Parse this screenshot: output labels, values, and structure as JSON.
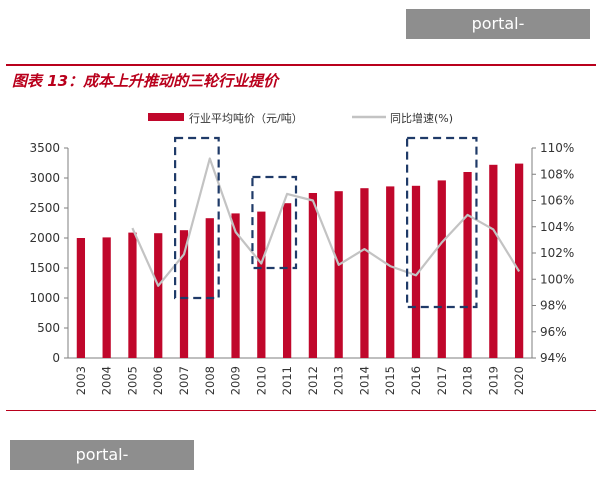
{
  "watermark": {
    "top_text": "portal-sportslive.com",
    "bottom_text": "portal-sportslive.com"
  },
  "header": {
    "title": "图表 13：成本上升推动的三轮行业提价"
  },
  "colors": {
    "accent": "#b9001c",
    "bar": "#c0072b",
    "line": "#c3c3c3",
    "dashed_box": "#1f3a68",
    "watermark_bg": "#8e8e8e"
  },
  "chart_data": {
    "type": "bar",
    "categories": [
      "2003",
      "2004",
      "2005",
      "2006",
      "2007",
      "2008",
      "2009",
      "2010",
      "2011",
      "2012",
      "2013",
      "2014",
      "2015",
      "2016",
      "2017",
      "2018",
      "2019",
      "2020"
    ],
    "series": [
      {
        "name": "行业平均吨价（元/吨）",
        "type": "bar",
        "axis": "left",
        "values": [
          2000,
          2010,
          2090,
          2080,
          2130,
          2330,
          2410,
          2440,
          2580,
          2750,
          2780,
          2830,
          2860,
          2870,
          2960,
          3100,
          3220,
          3240
        ]
      },
      {
        "name": "同比增速(%)",
        "type": "line",
        "axis": "right",
        "values": [
          100.6,
          null,
          103.9,
          99.5,
          101.9,
          109.2,
          103.6,
          101.2,
          106.5,
          106.0,
          101.1,
          102.3,
          101.0,
          100.3,
          102.8,
          104.9,
          103.8,
          100.6
        ]
      }
    ],
    "y_left": {
      "ylim": [
        0,
        3500
      ],
      "ticks": [
        0,
        500,
        1000,
        1500,
        2000,
        2500,
        3000,
        3500
      ]
    },
    "y_right": {
      "ylim": [
        94,
        110
      ],
      "ticks": [
        "94%",
        "96%",
        "98%",
        "100%",
        "102%",
        "104%",
        "106%",
        "108%",
        "110%"
      ]
    },
    "legend_position": "top",
    "grid": false,
    "annotations": [
      {
        "type": "dashed-box",
        "from": "2007",
        "to": "2008",
        "y_range": [
          1000,
          3500
        ]
      },
      {
        "type": "dashed-box",
        "from": "2010",
        "to": "2011",
        "y_range": [
          1500,
          2850
        ]
      },
      {
        "type": "dashed-box",
        "from": "2016",
        "to": "2018",
        "y_range": [
          850,
          3500
        ]
      }
    ]
  }
}
